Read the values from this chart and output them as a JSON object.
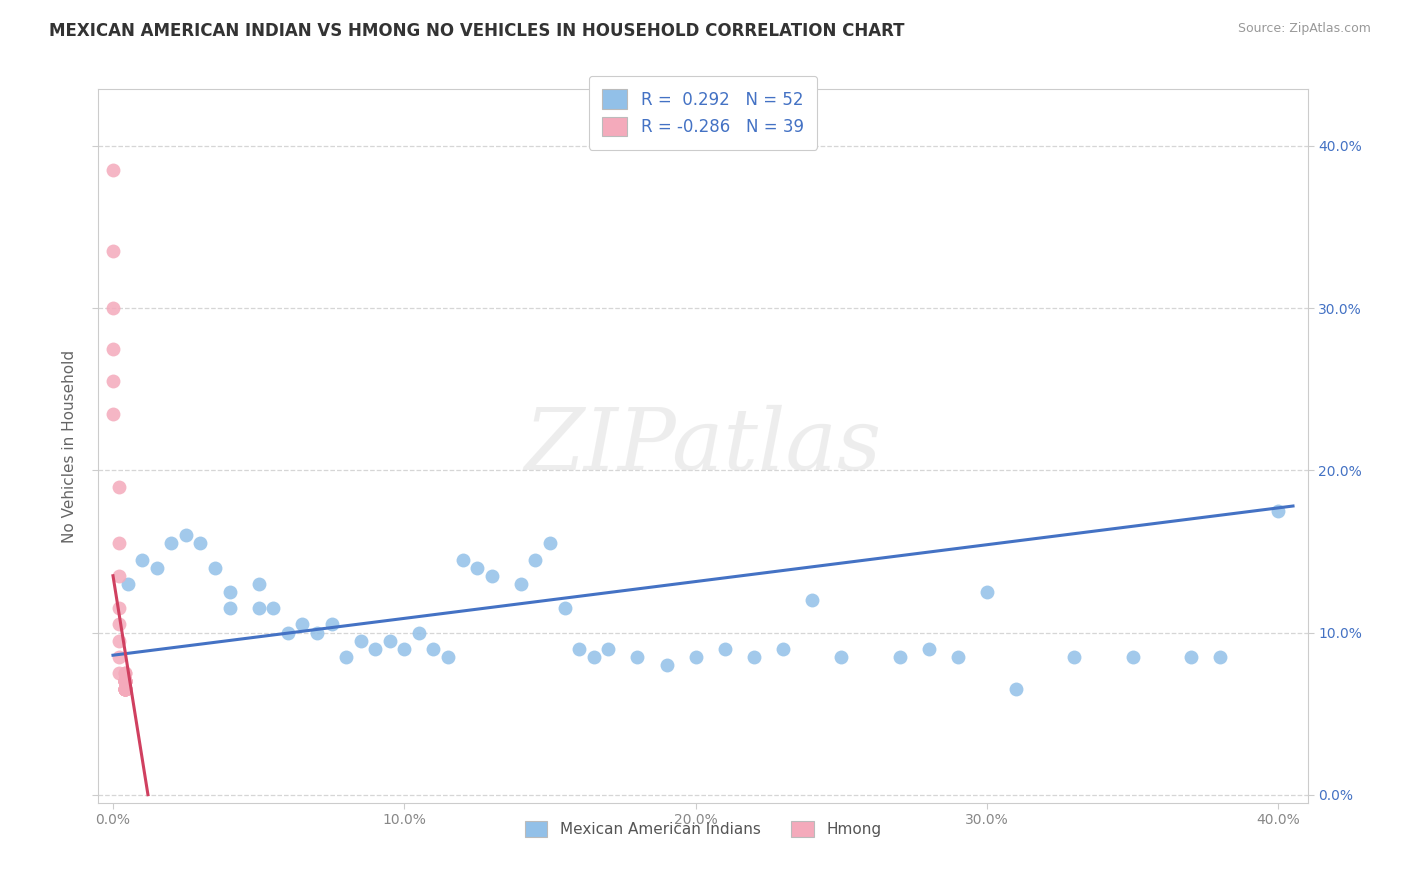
{
  "title": "MEXICAN AMERICAN INDIAN VS HMONG NO VEHICLES IN HOUSEHOLD CORRELATION CHART",
  "source": "Source: ZipAtlas.com",
  "xlim": [
    -0.005,
    0.41
  ],
  "ylim": [
    -0.005,
    0.435
  ],
  "legend_r_blue": "R =  0.292",
  "legend_n_blue": "N = 52",
  "legend_r_pink": "R = -0.286",
  "legend_n_pink": "N = 39",
  "blue_color": "#92C0E8",
  "pink_color": "#F4AABB",
  "line_blue": "#4472C4",
  "line_pink": "#D04060",
  "watermark_text": "ZIPatlas",
  "ylabel": "No Vehicles in Household",
  "legend_label_blue": "Mexican American Indians",
  "legend_label_pink": "Hmong",
  "blue_scatter_x": [
    0.005,
    0.01,
    0.015,
    0.02,
    0.025,
    0.03,
    0.035,
    0.04,
    0.04,
    0.05,
    0.05,
    0.055,
    0.06,
    0.065,
    0.07,
    0.075,
    0.08,
    0.085,
    0.09,
    0.095,
    0.1,
    0.105,
    0.11,
    0.115,
    0.12,
    0.125,
    0.13,
    0.14,
    0.145,
    0.15,
    0.155,
    0.16,
    0.165,
    0.17,
    0.18,
    0.19,
    0.2,
    0.21,
    0.22,
    0.23,
    0.24,
    0.25,
    0.27,
    0.28,
    0.29,
    0.3,
    0.31,
    0.33,
    0.35,
    0.37,
    0.38,
    0.4
  ],
  "blue_scatter_y": [
    0.13,
    0.145,
    0.14,
    0.155,
    0.16,
    0.155,
    0.14,
    0.115,
    0.125,
    0.115,
    0.13,
    0.115,
    0.1,
    0.105,
    0.1,
    0.105,
    0.085,
    0.095,
    0.09,
    0.095,
    0.09,
    0.1,
    0.09,
    0.085,
    0.145,
    0.14,
    0.135,
    0.13,
    0.145,
    0.155,
    0.115,
    0.09,
    0.085,
    0.09,
    0.085,
    0.08,
    0.085,
    0.09,
    0.085,
    0.09,
    0.12,
    0.085,
    0.085,
    0.09,
    0.085,
    0.125,
    0.065,
    0.085,
    0.085,
    0.085,
    0.085,
    0.175
  ],
  "pink_scatter_x": [
    0.0,
    0.0,
    0.0,
    0.0,
    0.0,
    0.0,
    0.002,
    0.002,
    0.002,
    0.002,
    0.002,
    0.002,
    0.002,
    0.002,
    0.004,
    0.004,
    0.004,
    0.004,
    0.004,
    0.004,
    0.004,
    0.004,
    0.004,
    0.004,
    0.004,
    0.004,
    0.004,
    0.004,
    0.004,
    0.004,
    0.004,
    0.004,
    0.004,
    0.004,
    0.004,
    0.004,
    0.004,
    0.004,
    0.004
  ],
  "pink_scatter_y": [
    0.385,
    0.335,
    0.3,
    0.275,
    0.255,
    0.235,
    0.19,
    0.155,
    0.135,
    0.115,
    0.105,
    0.095,
    0.085,
    0.075,
    0.075,
    0.07,
    0.065,
    0.065,
    0.065,
    0.065,
    0.065,
    0.065,
    0.065,
    0.065,
    0.065,
    0.065,
    0.065,
    0.07,
    0.07,
    0.07,
    0.07,
    0.07,
    0.07,
    0.07,
    0.07,
    0.07,
    0.07,
    0.07,
    0.075
  ],
  "blue_trend_x": [
    0.0,
    0.405
  ],
  "blue_trend_y": [
    0.086,
    0.178
  ],
  "pink_trend_x": [
    0.0,
    0.012
  ],
  "pink_trend_y": [
    0.135,
    0.0
  ],
  "x_ticks": [
    0.0,
    0.1,
    0.2,
    0.3,
    0.4
  ],
  "y_ticks": [
    0.0,
    0.1,
    0.2,
    0.3,
    0.4
  ],
  "title_fontsize": 12,
  "source_fontsize": 9,
  "tick_fontsize": 10,
  "ylabel_fontsize": 11,
  "background_color": "#FFFFFF",
  "grid_color": "#CCCCCC",
  "right_tick_color": "#4472C4",
  "scatter_size": 100
}
